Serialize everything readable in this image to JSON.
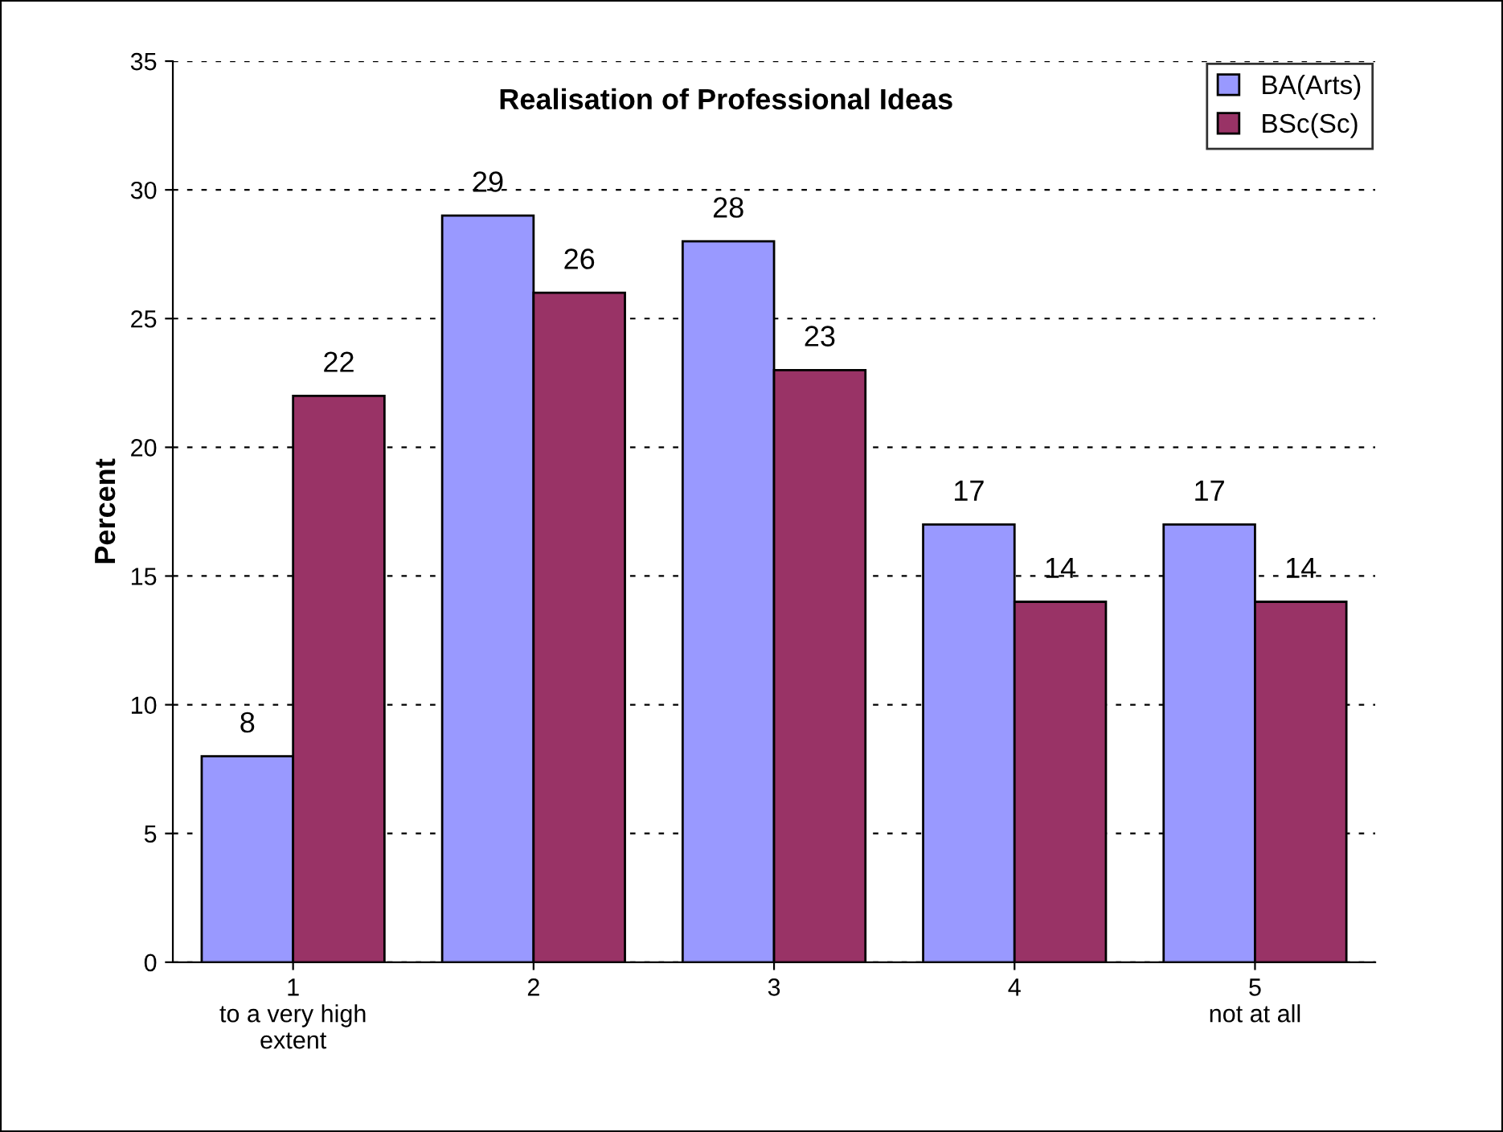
{
  "chart_data": {
    "type": "bar",
    "title": "Realisation of Professional Ideas",
    "ylabel": "Percent",
    "categories": [
      "1\nto a very high\nextent",
      "2",
      "3",
      "4",
      "5\nnot at all"
    ],
    "series": [
      {
        "name": "BA(Arts)",
        "color": "#9999ff",
        "values": [
          8,
          29,
          28,
          17,
          17
        ]
      },
      {
        "name": "BSc(Sc)",
        "color": "#993366",
        "values": [
          22,
          26,
          23,
          14,
          14
        ]
      }
    ],
    "ylim": [
      0,
      35
    ],
    "yticks": [
      0,
      5,
      10,
      15,
      20,
      25,
      30,
      35
    ],
    "grid": "y",
    "legend": "top right",
    "data_labels": true
  }
}
